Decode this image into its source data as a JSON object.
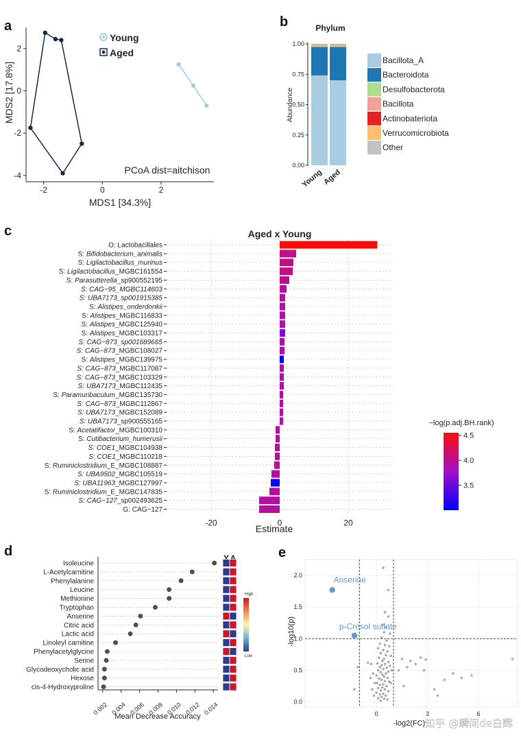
{
  "panel_letters": {
    "a": "a",
    "b": "b",
    "c": "c",
    "d": "d",
    "e": "e"
  },
  "watermark": "知乎 @瞬间de白辉",
  "chart_data": [
    {
      "id": "a",
      "type": "scatter",
      "xlabel": "MDS1 [34.3%]",
      "ylabel": "MDS2 [17.8%]",
      "annotation": "PCoA dist=aitchison",
      "xlim": [
        -2.6,
        3.8
      ],
      "ylim": [
        -4.3,
        3.0
      ],
      "xticks": [
        -2,
        0,
        2
      ],
      "yticks": [
        -4,
        -2,
        0,
        2
      ],
      "legend": [
        {
          "label": "Young",
          "color": "#a8cde3"
        },
        {
          "label": "Aged",
          "color": "#132a48"
        }
      ],
      "series": [
        {
          "name": "Young",
          "color": "#a8cde3",
          "hull": false,
          "points": [
            [
              2.6,
              1.25
            ],
            [
              3.1,
              0.25
            ],
            [
              3.55,
              -0.7
            ]
          ]
        },
        {
          "name": "Aged",
          "color": "#132a48",
          "hull": true,
          "points": [
            [
              -1.95,
              2.75
            ],
            [
              -1.6,
              2.45
            ],
            [
              -1.4,
              2.4
            ],
            [
              -2.45,
              -1.75
            ],
            [
              -0.7,
              -2.5
            ],
            [
              -1.35,
              -3.9
            ]
          ]
        }
      ]
    },
    {
      "id": "b",
      "type": "bar",
      "stacked": true,
      "title": "Phylum",
      "ylabel": "Abundance",
      "categories": [
        "Young",
        "Aged"
      ],
      "yticks": [
        "0.00",
        "0.25",
        "0.50",
        "0.75",
        "1.00"
      ],
      "series": [
        {
          "name": "Bacillota_A",
          "color": "#a8cde3",
          "values": [
            0.74,
            0.7
          ]
        },
        {
          "name": "Bacteroidota",
          "color": "#2075b3",
          "values": [
            0.235,
            0.275
          ]
        },
        {
          "name": "Desulfobacterota",
          "color": "#b0dc8c",
          "values": [
            0.012,
            0.012
          ]
        },
        {
          "name": "Bacillota",
          "color": "#f4a09a",
          "values": [
            0.006,
            0.006
          ]
        },
        {
          "name": "Actinobateriota",
          "color": "#e32322",
          "values": [
            0.003,
            0.003
          ]
        },
        {
          "name": "Verrucomicrobiota",
          "color": "#fcbf6f",
          "values": [
            0.002,
            0.002
          ]
        },
        {
          "name": "Other",
          "color": "#c2c2c2",
          "values": [
            0.002,
            0.002
          ]
        }
      ]
    },
    {
      "id": "c",
      "type": "bar",
      "orientation": "horizontal",
      "title": "Aged x Young",
      "xlabel": "Estimate",
      "xlim": [
        -33,
        33
      ],
      "xticks": [
        -20,
        0,
        20
      ],
      "legend_title": "−log(p.adj.BH.rank)",
      "legend_ticks": [
        3.5,
        4.0,
        4.5
      ],
      "legend_range": [
        3.0,
        4.55
      ],
      "bars": [
        {
          "label": [
            [
              "O: Lactobacillales",
              false
            ]
          ],
          "value": 28.5,
          "score": 4.55
        },
        {
          "label": [
            [
              "S: ",
              false
            ],
            [
              "Bifidobacterium_animalis",
              true
            ]
          ],
          "value": 4.8,
          "score": 4.05
        },
        {
          "label": [
            [
              "S: ",
              false
            ],
            [
              "Ligilactobacillus_murinus",
              true
            ]
          ],
          "value": 4.0,
          "score": 4.05
        },
        {
          "label": [
            [
              "S: ",
              false
            ],
            [
              "Ligilactobacillus",
              true
            ],
            [
              "_MGBC161554",
              false
            ]
          ],
          "value": 3.8,
          "score": 4.05
        },
        {
          "label": [
            [
              "S: ",
              false
            ],
            [
              "Parasutterella",
              true
            ],
            [
              "_sp900552195",
              false
            ]
          ],
          "value": 2.8,
          "score": 4.0
        },
        {
          "label": [
            [
              "S: CAG−95_MGBC114603",
              true
            ]
          ],
          "value": 2.0,
          "score": 3.95
        },
        {
          "label": [
            [
              "S: UBA7173_sp001915385",
              true
            ]
          ],
          "value": 1.6,
          "score": 3.95
        },
        {
          "label": [
            [
              "S: ",
              false
            ],
            [
              "Alistipes_onderdonkii",
              true
            ]
          ],
          "value": 1.6,
          "score": 3.95
        },
        {
          "label": [
            [
              "S: ",
              false
            ],
            [
              "Alistipes",
              true
            ],
            [
              "_MGBC116833",
              false
            ]
          ],
          "value": 1.6,
          "score": 3.9
        },
        {
          "label": [
            [
              "S: ",
              false
            ],
            [
              "Alistipes",
              true
            ],
            [
              "_MGBC125940",
              false
            ]
          ],
          "value": 1.6,
          "score": 3.9
        },
        {
          "label": [
            [
              "S: ",
              false
            ],
            [
              "Alistipes",
              true
            ],
            [
              "_MGBC103317",
              false
            ]
          ],
          "value": 1.6,
          "score": 3.6
        },
        {
          "label": [
            [
              "S: CAG−873_sp001689665",
              true
            ]
          ],
          "value": 1.4,
          "score": 3.9
        },
        {
          "label": [
            [
              "S: CAG−873",
              true
            ],
            [
              "_MGBC108027",
              false
            ]
          ],
          "value": 1.4,
          "score": 3.9
        },
        {
          "label": [
            [
              "S: ",
              false
            ],
            [
              "Alistipes",
              true
            ],
            [
              "_MGBC139975",
              false
            ]
          ],
          "value": 1.2,
          "score": 3.05
        },
        {
          "label": [
            [
              "S: CAG−873",
              true
            ],
            [
              "_MGBC117087",
              false
            ]
          ],
          "value": 1.2,
          "score": 3.9
        },
        {
          "label": [
            [
              "S: CAG−873",
              true
            ],
            [
              "_MGBC103329",
              false
            ]
          ],
          "value": 1.2,
          "score": 3.9
        },
        {
          "label": [
            [
              "S: UBA7173",
              true
            ],
            [
              "_MGBC112435",
              false
            ]
          ],
          "value": 1.2,
          "score": 3.9
        },
        {
          "label": [
            [
              "S: ",
              false
            ],
            [
              "Paramuribaculum",
              true
            ],
            [
              "_MGBC135730",
              false
            ]
          ],
          "value": 1.0,
          "score": 3.9
        },
        {
          "label": [
            [
              "S: CAG−873",
              true
            ],
            [
              "_MGBC112867",
              false
            ]
          ],
          "value": 1.0,
          "score": 3.9
        },
        {
          "label": [
            [
              "S: UBA7173",
              true
            ],
            [
              "_MGBC152089",
              false
            ]
          ],
          "value": 1.0,
          "score": 3.9
        },
        {
          "label": [
            [
              "S: UBA7173",
              true
            ],
            [
              "_sp900555165",
              false
            ]
          ],
          "value": 1.0,
          "score": 3.9
        },
        {
          "label": [
            [
              "S: ",
              false
            ],
            [
              "Acetatifactor",
              true
            ],
            [
              "_MGBC100310",
              false
            ]
          ],
          "value": -1.2,
          "score": 3.95
        },
        {
          "label": [
            [
              "S: ",
              false
            ],
            [
              "Cutibacterium_humerusii",
              true
            ]
          ],
          "value": -1.2,
          "score": 3.95
        },
        {
          "label": [
            [
              "S: COE1",
              true
            ],
            [
              "_MGBC104938",
              false
            ]
          ],
          "value": -1.4,
          "score": 3.95
        },
        {
          "label": [
            [
              "S: COE1",
              true
            ],
            [
              "_MGBC110218",
              false
            ]
          ],
          "value": -1.4,
          "score": 3.95
        },
        {
          "label": [
            [
              "S: ",
              false
            ],
            [
              "Ruminiclostridium",
              true
            ],
            [
              "_E_MGBC108887",
              false
            ]
          ],
          "value": -1.6,
          "score": 3.95
        },
        {
          "label": [
            [
              "S: UBA9502",
              true
            ],
            [
              "_MGBC105519",
              false
            ]
          ],
          "value": -2.4,
          "score": 3.95
        },
        {
          "label": [
            [
              "S: UBA11963",
              true
            ],
            [
              "_MGBC127997",
              false
            ]
          ],
          "value": -2.6,
          "score": 3.05
        },
        {
          "label": [
            [
              "S: ",
              false
            ],
            [
              "Ruminiclostridium",
              true
            ],
            [
              "_E_MGBC147835",
              false
            ]
          ],
          "value": -3.0,
          "score": 3.95
        },
        {
          "label": [
            [
              "S: CAG−127",
              true
            ],
            [
              "_sp002493625",
              false
            ]
          ],
          "value": -6.0,
          "score": 3.95
        },
        {
          "label": [
            [
              "G: CAG−127",
              false
            ]
          ],
          "value": -6.0,
          "score": 3.95
        }
      ]
    },
    {
      "id": "d",
      "type": "scatter",
      "subtype": "dot-importance",
      "xlabel": "Mean Decrease Accuracy",
      "xlim": [
        0.0015,
        0.0145
      ],
      "xticks": [
        "0.002",
        "0.004",
        "0.006",
        "0.008",
        "0.010",
        "0.012",
        "0.014"
      ],
      "heat_headers": [
        "Y",
        "A"
      ],
      "legend_high": "High",
      "legend_low": "Low",
      "features": [
        {
          "name": "Isoleucine",
          "value": 0.0141,
          "Y": "#2c3b8f",
          "A": "#c9182b"
        },
        {
          "name": "L-Acetylcarnitine",
          "value": 0.0117,
          "Y": "#2c3b8f",
          "A": "#c9182b"
        },
        {
          "name": "Phenylalanine",
          "value": 0.0105,
          "Y": "#2c3b8f",
          "A": "#c9182b"
        },
        {
          "name": "Leucine",
          "value": 0.0092,
          "Y": "#2c3b8f",
          "A": "#c9182b"
        },
        {
          "name": "Methionine",
          "value": 0.0092,
          "Y": "#2c3b8f",
          "A": "#c9182b"
        },
        {
          "name": "Tryptophan",
          "value": 0.0077,
          "Y": "#2c3b8f",
          "A": "#c9182b"
        },
        {
          "name": "Anserine",
          "value": 0.0061,
          "Y": "#c9182b",
          "A": "#2c3b8f"
        },
        {
          "name": "Citric acid",
          "value": 0.0056,
          "Y": "#2c3b8f",
          "A": "#c9182b"
        },
        {
          "name": "Lactic acid",
          "value": 0.005,
          "Y": "#c9182b",
          "A": "#2c3b8f"
        },
        {
          "name": "Linoleyl carnitine",
          "value": 0.0034,
          "Y": "#2c3b8f",
          "A": "#c9182b"
        },
        {
          "name": "Phenylacetylglycine",
          "value": 0.0025,
          "Y": "#c9182b",
          "A": "#2c3b8f"
        },
        {
          "name": "Serine",
          "value": 0.0024,
          "Y": "#2c3b8f",
          "A": "#c9182b"
        },
        {
          "name": "Glycodeoxycholic acid",
          "value": 0.0022,
          "Y": "#2c3b8f",
          "A": "#c9182b"
        },
        {
          "name": "Hexose",
          "value": 0.0022,
          "Y": "#2c3b8f",
          "A": "#c9182b"
        },
        {
          "name": "cis-4-Hydroxyproline",
          "value": 0.0021,
          "Y": "#2c3b8f",
          "A": "#c9182b"
        }
      ]
    },
    {
      "id": "e",
      "type": "scatter",
      "subtype": "volcano",
      "xlabel": "-log2(FC)",
      "ylabel": "-log10(p)",
      "xlim": [
        -4.2,
        8.3
      ],
      "ylim": [
        -0.08,
        2.25
      ],
      "xticks": [
        0,
        3,
        6
      ],
      "yticks": [
        "0.0",
        "0.5",
        "1.0",
        "1.5",
        "2.0"
      ],
      "vlines": [
        -1,
        1
      ],
      "hline": 1.0,
      "highlight": [
        {
          "label": "Anserine",
          "x": -2.6,
          "y": 1.77
        },
        {
          "label": "p-Cresol sulfate",
          "x": -1.3,
          "y": 1.05
        }
      ],
      "points": [
        [
          0.4,
          2.12
        ],
        [
          0.7,
          1.77
        ],
        [
          0.5,
          1.42
        ],
        [
          0.7,
          1.35
        ],
        [
          0.35,
          1.22
        ],
        [
          0.55,
          1.18
        ],
        [
          0.45,
          1.1
        ],
        [
          0.8,
          1.08
        ],
        [
          0.3,
          1.02
        ],
        [
          0.6,
          0.97
        ],
        [
          0.2,
          0.92
        ],
        [
          0.5,
          0.9
        ],
        [
          0.75,
          0.88
        ],
        [
          0.1,
          0.85
        ],
        [
          0.4,
          0.82
        ],
        [
          0.65,
          0.8
        ],
        [
          0.25,
          0.77
        ],
        [
          0.55,
          0.74
        ],
        [
          0.85,
          0.73
        ],
        [
          0.15,
          0.7
        ],
        [
          0.45,
          0.68
        ],
        [
          0.35,
          0.65
        ],
        [
          0.7,
          0.63
        ],
        [
          0.05,
          0.61
        ],
        [
          0.5,
          0.6
        ],
        [
          0.3,
          0.58
        ],
        [
          0.8,
          0.57
        ],
        [
          0.2,
          0.55
        ],
        [
          0.6,
          0.54
        ],
        [
          0.4,
          0.52
        ],
        [
          0.1,
          0.5
        ],
        [
          0.7,
          0.48
        ],
        [
          0.25,
          0.47
        ],
        [
          0.55,
          0.45
        ],
        [
          0.35,
          0.43
        ],
        [
          0.0,
          0.42
        ],
        [
          0.45,
          0.4
        ],
        [
          0.65,
          0.38
        ],
        [
          0.15,
          0.37
        ],
        [
          0.3,
          0.35
        ],
        [
          0.5,
          0.33
        ],
        [
          0.75,
          0.32
        ],
        [
          0.05,
          0.3
        ],
        [
          0.4,
          0.28
        ],
        [
          0.2,
          0.27
        ],
        [
          0.6,
          0.25
        ],
        [
          0.35,
          0.23
        ],
        [
          0.1,
          0.22
        ],
        [
          0.5,
          0.2
        ],
        [
          0.25,
          0.18
        ],
        [
          0.7,
          0.17
        ],
        [
          0.0,
          0.15
        ],
        [
          0.4,
          0.13
        ],
        [
          0.2,
          0.12
        ],
        [
          0.55,
          0.1
        ],
        [
          0.3,
          0.08
        ],
        [
          0.1,
          0.06
        ],
        [
          0.45,
          0.05
        ],
        [
          0.65,
          0.04
        ],
        [
          0.25,
          0.02
        ],
        [
          0.85,
          0.3
        ],
        [
          0.9,
          0.5
        ],
        [
          -0.2,
          0.45
        ],
        [
          -0.1,
          0.3
        ],
        [
          -0.3,
          0.6
        ],
        [
          -0.25,
          0.2
        ],
        [
          -0.15,
          0.1
        ],
        [
          -0.35,
          0.38
        ],
        [
          -0.5,
          0.62
        ],
        [
          -1.1,
          0.55
        ],
        [
          -1.3,
          0.2
        ],
        [
          1.3,
          0.5
        ],
        [
          1.6,
          0.25
        ],
        [
          1.8,
          0.55
        ],
        [
          2.0,
          0.65
        ],
        [
          2.3,
          0.6
        ],
        [
          2.6,
          0.7
        ],
        [
          2.8,
          0.5
        ],
        [
          3.4,
          0.2
        ],
        [
          3.6,
          0.1
        ],
        [
          4.0,
          0.35
        ],
        [
          4.5,
          0.45
        ],
        [
          5.0,
          0.38
        ],
        [
          5.6,
          0.42
        ],
        [
          8.0,
          0.68
        ],
        [
          2.9,
          0.67
        ],
        [
          1.5,
          0.68
        ]
      ]
    }
  ]
}
